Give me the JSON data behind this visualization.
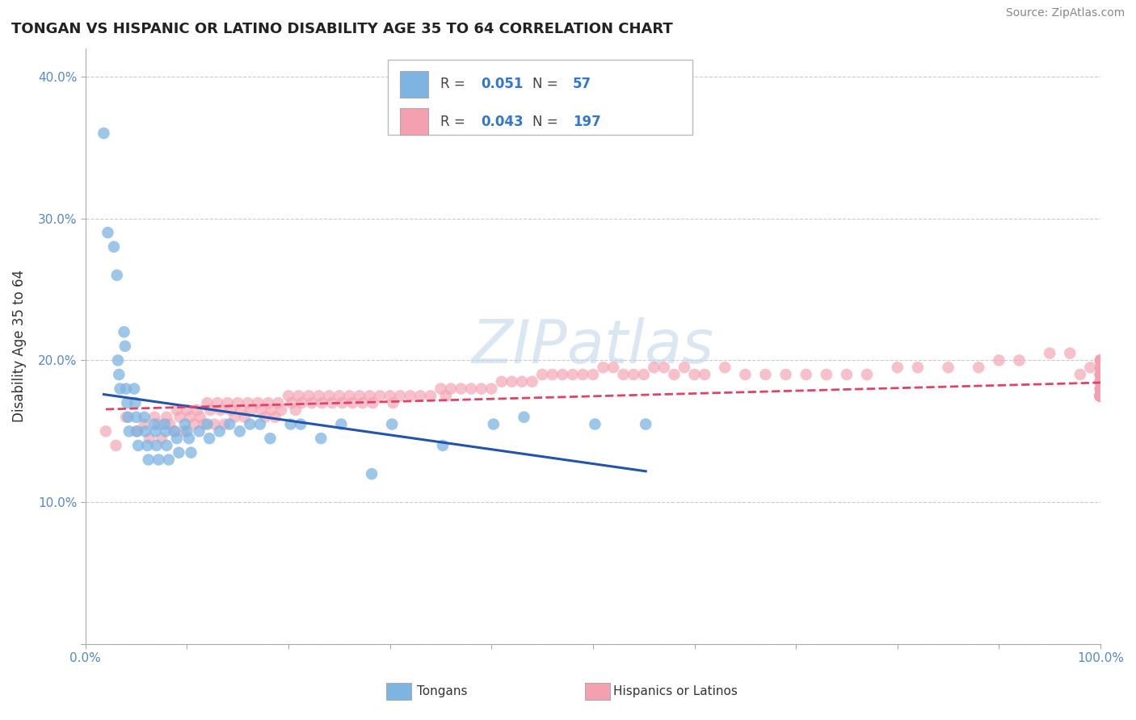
{
  "title": "TONGAN VS HISPANIC OR LATINO DISABILITY AGE 35 TO 64 CORRELATION CHART",
  "source": "Source: ZipAtlas.com",
  "ylabel": "Disability Age 35 to 64",
  "xlim": [
    0,
    1.0
  ],
  "ylim": [
    0,
    0.42
  ],
  "x_ticks": [
    0.0,
    0.1,
    0.2,
    0.3,
    0.4,
    0.5,
    0.6,
    0.7,
    0.8,
    0.9,
    1.0
  ],
  "x_tick_labels": [
    "0.0%",
    "",
    "",
    "",
    "",
    "",
    "",
    "",
    "",
    "",
    "100.0%"
  ],
  "y_ticks": [
    0.0,
    0.1,
    0.2,
    0.3,
    0.4
  ],
  "y_tick_labels": [
    "",
    "10.0%",
    "20.0%",
    "30.0%",
    "40.0%"
  ],
  "tongan_R": "0.051",
  "tongan_N": "57",
  "hispanic_R": "0.043",
  "hispanic_N": "197",
  "tongan_color": "#7EB4E2",
  "hispanic_color": "#F4A0B0",
  "tongan_line_color": "#2255AA",
  "hispanic_line_color": "#DD4466",
  "background_color": "#FFFFFF",
  "grid_color": "#CCCCCC",
  "tongan_x": [
    0.018,
    0.022,
    0.028,
    0.031,
    0.032,
    0.033,
    0.034,
    0.038,
    0.039,
    0.04,
    0.041,
    0.042,
    0.043,
    0.048,
    0.049,
    0.05,
    0.051,
    0.052,
    0.058,
    0.059,
    0.061,
    0.062,
    0.068,
    0.069,
    0.07,
    0.072,
    0.078,
    0.079,
    0.08,
    0.082,
    0.088,
    0.09,
    0.092,
    0.098,
    0.1,
    0.102,
    0.104,
    0.112,
    0.12,
    0.122,
    0.132,
    0.142,
    0.152,
    0.162,
    0.172,
    0.182,
    0.202,
    0.212,
    0.232,
    0.252,
    0.282,
    0.302,
    0.352,
    0.402,
    0.432,
    0.502,
    0.552
  ],
  "tongan_y": [
    0.36,
    0.29,
    0.28,
    0.26,
    0.2,
    0.19,
    0.18,
    0.22,
    0.21,
    0.18,
    0.17,
    0.16,
    0.15,
    0.18,
    0.17,
    0.16,
    0.15,
    0.14,
    0.16,
    0.15,
    0.14,
    0.13,
    0.155,
    0.15,
    0.14,
    0.13,
    0.155,
    0.15,
    0.14,
    0.13,
    0.15,
    0.145,
    0.135,
    0.155,
    0.15,
    0.145,
    0.135,
    0.15,
    0.155,
    0.145,
    0.15,
    0.155,
    0.15,
    0.155,
    0.155,
    0.145,
    0.155,
    0.155,
    0.145,
    0.155,
    0.12,
    0.155,
    0.14,
    0.155,
    0.16,
    0.155,
    0.155
  ],
  "hispanic_x": [
    0.02,
    0.03,
    0.04,
    0.05,
    0.058,
    0.063,
    0.068,
    0.072,
    0.075,
    0.08,
    0.083,
    0.087,
    0.09,
    0.093,
    0.097,
    0.1,
    0.103,
    0.107,
    0.11,
    0.113,
    0.117,
    0.12,
    0.123,
    0.127,
    0.13,
    0.133,
    0.137,
    0.14,
    0.143,
    0.147,
    0.15,
    0.153,
    0.157,
    0.16,
    0.163,
    0.17,
    0.173,
    0.177,
    0.18,
    0.183,
    0.187,
    0.19,
    0.193,
    0.2,
    0.203,
    0.207,
    0.21,
    0.213,
    0.22,
    0.223,
    0.23,
    0.233,
    0.24,
    0.243,
    0.25,
    0.253,
    0.26,
    0.263,
    0.27,
    0.273,
    0.28,
    0.283,
    0.29,
    0.3,
    0.303,
    0.31,
    0.32,
    0.33,
    0.34,
    0.35,
    0.355,
    0.36,
    0.37,
    0.38,
    0.39,
    0.4,
    0.41,
    0.42,
    0.43,
    0.44,
    0.45,
    0.46,
    0.47,
    0.48,
    0.49,
    0.5,
    0.51,
    0.52,
    0.53,
    0.54,
    0.55,
    0.56,
    0.57,
    0.58,
    0.59,
    0.6,
    0.61,
    0.63,
    0.65,
    0.67,
    0.69,
    0.71,
    0.73,
    0.75,
    0.77,
    0.8,
    0.82,
    0.85,
    0.88,
    0.9,
    0.92,
    0.95,
    0.97,
    0.98,
    0.99,
    1.0,
    1.0,
    1.0,
    1.0,
    1.0,
    1.0,
    1.0,
    1.0,
    1.0,
    1.0,
    1.0,
    1.0,
    1.0,
    1.0,
    1.0,
    1.0,
    1.0,
    1.0,
    1.0,
    1.0,
    1.0,
    1.0,
    1.0,
    1.0,
    1.0,
    1.0,
    1.0,
    1.0,
    1.0,
    1.0,
    1.0,
    1.0,
    1.0,
    1.0,
    1.0,
    1.0,
    1.0,
    1.0,
    1.0,
    1.0,
    1.0,
    1.0,
    1.0,
    1.0,
    1.0,
    1.0,
    1.0,
    1.0,
    1.0,
    1.0,
    1.0,
    1.0,
    1.0,
    1.0,
    1.0,
    1.0,
    1.0,
    1.0,
    1.0,
    1.0,
    1.0,
    1.0,
    1.0,
    1.0,
    1.0,
    1.0,
    1.0,
    1.0,
    1.0,
    1.0,
    1.0,
    1.0,
    1.0,
    1.0,
    1.0,
    1.0,
    1.0,
    1.0
  ],
  "hispanic_y": [
    0.15,
    0.14,
    0.16,
    0.15,
    0.155,
    0.145,
    0.16,
    0.155,
    0.145,
    0.16,
    0.155,
    0.15,
    0.165,
    0.16,
    0.15,
    0.165,
    0.16,
    0.155,
    0.165,
    0.16,
    0.155,
    0.17,
    0.165,
    0.155,
    0.17,
    0.165,
    0.155,
    0.17,
    0.165,
    0.16,
    0.17,
    0.165,
    0.16,
    0.17,
    0.165,
    0.17,
    0.165,
    0.16,
    0.17,
    0.165,
    0.16,
    0.17,
    0.165,
    0.175,
    0.17,
    0.165,
    0.175,
    0.17,
    0.175,
    0.17,
    0.175,
    0.17,
    0.175,
    0.17,
    0.175,
    0.17,
    0.175,
    0.17,
    0.175,
    0.17,
    0.175,
    0.17,
    0.175,
    0.175,
    0.17,
    0.175,
    0.175,
    0.175,
    0.175,
    0.18,
    0.175,
    0.18,
    0.18,
    0.18,
    0.18,
    0.18,
    0.185,
    0.185,
    0.185,
    0.185,
    0.19,
    0.19,
    0.19,
    0.19,
    0.19,
    0.19,
    0.195,
    0.195,
    0.19,
    0.19,
    0.19,
    0.195,
    0.195,
    0.19,
    0.195,
    0.19,
    0.19,
    0.195,
    0.19,
    0.19,
    0.19,
    0.19,
    0.19,
    0.19,
    0.19,
    0.195,
    0.195,
    0.195,
    0.195,
    0.2,
    0.2,
    0.205,
    0.205,
    0.19,
    0.195,
    0.2,
    0.2,
    0.2,
    0.19,
    0.195,
    0.2,
    0.19,
    0.185,
    0.19,
    0.195,
    0.185,
    0.19,
    0.195,
    0.19,
    0.185,
    0.185,
    0.185,
    0.19,
    0.185,
    0.18,
    0.185,
    0.18,
    0.175,
    0.18,
    0.175,
    0.175,
    0.175,
    0.175,
    0.175,
    0.175,
    0.175,
    0.18,
    0.175,
    0.175,
    0.175,
    0.175,
    0.18,
    0.175,
    0.175,
    0.175,
    0.18,
    0.175,
    0.175,
    0.175,
    0.175,
    0.175,
    0.175,
    0.175,
    0.175,
    0.175,
    0.175,
    0.175,
    0.175,
    0.175,
    0.175,
    0.175,
    0.175,
    0.175,
    0.175,
    0.175,
    0.175,
    0.175,
    0.175,
    0.175,
    0.175,
    0.175,
    0.175,
    0.175,
    0.175,
    0.175,
    0.175,
    0.175,
    0.175,
    0.175,
    0.175,
    0.175,
    0.175,
    0.175
  ]
}
